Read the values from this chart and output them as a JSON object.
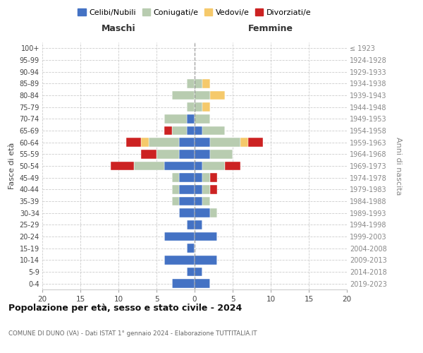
{
  "age_groups": [
    "0-4",
    "5-9",
    "10-14",
    "15-19",
    "20-24",
    "25-29",
    "30-34",
    "35-39",
    "40-44",
    "45-49",
    "50-54",
    "55-59",
    "60-64",
    "65-69",
    "70-74",
    "75-79",
    "80-84",
    "85-89",
    "90-94",
    "95-99",
    "100+"
  ],
  "birth_years": [
    "2019-2023",
    "2014-2018",
    "2009-2013",
    "2004-2008",
    "1999-2003",
    "1994-1998",
    "1989-1993",
    "1984-1988",
    "1979-1983",
    "1974-1978",
    "1969-1973",
    "1964-1968",
    "1959-1963",
    "1954-1958",
    "1949-1953",
    "1944-1948",
    "1939-1943",
    "1934-1938",
    "1929-1933",
    "1924-1928",
    "≤ 1923"
  ],
  "colors": {
    "celibe": "#4472C4",
    "coniugato": "#B8CCB0",
    "vedovo": "#F5C96B",
    "divorziato": "#CC2222"
  },
  "maschi": {
    "celibe": [
      3,
      1,
      4,
      1,
      4,
      1,
      2,
      2,
      2,
      2,
      4,
      2,
      2,
      1,
      1,
      0,
      0,
      0,
      0,
      0,
      0
    ],
    "coniugato": [
      0,
      0,
      0,
      0,
      0,
      0,
      0,
      1,
      1,
      1,
      4,
      3,
      4,
      2,
      3,
      1,
      3,
      1,
      0,
      0,
      0
    ],
    "vedovo": [
      0,
      0,
      0,
      0,
      0,
      0,
      0,
      0,
      0,
      0,
      0,
      0,
      1,
      0,
      0,
      0,
      0,
      0,
      0,
      0,
      0
    ],
    "divorziato": [
      0,
      0,
      0,
      0,
      0,
      0,
      0,
      0,
      0,
      0,
      3,
      2,
      2,
      1,
      0,
      0,
      0,
      0,
      0,
      0,
      0
    ]
  },
  "femmine": {
    "nubile": [
      2,
      1,
      3,
      0,
      3,
      1,
      2,
      1,
      1,
      1,
      1,
      2,
      2,
      1,
      0,
      0,
      0,
      0,
      0,
      0,
      0
    ],
    "coniugata": [
      0,
      0,
      0,
      0,
      0,
      0,
      1,
      1,
      1,
      1,
      3,
      3,
      4,
      3,
      2,
      1,
      2,
      1,
      0,
      0,
      0
    ],
    "vedova": [
      0,
      0,
      0,
      0,
      0,
      0,
      0,
      0,
      0,
      0,
      0,
      0,
      1,
      0,
      0,
      1,
      2,
      1,
      0,
      0,
      0
    ],
    "divorziata": [
      0,
      0,
      0,
      0,
      0,
      0,
      0,
      0,
      1,
      1,
      2,
      0,
      2,
      0,
      0,
      0,
      0,
      0,
      0,
      0,
      0
    ]
  },
  "xlim": 20,
  "title": "Popolazione per età, sesso e stato civile - 2024",
  "subtitle": "COMUNE DI DUNO (VA) - Dati ISTAT 1° gennaio 2024 - Elaborazione TUTTITALIA.IT",
  "ylabel_left": "Fasce di età",
  "ylabel_right": "Anni di nascita",
  "xlabel_left": "Maschi",
  "xlabel_right": "Femmine",
  "legend_labels": [
    "Celibi/Nubili",
    "Coniugati/e",
    "Vedovi/e",
    "Divorziati/e"
  ],
  "bg_color": "#FFFFFF"
}
